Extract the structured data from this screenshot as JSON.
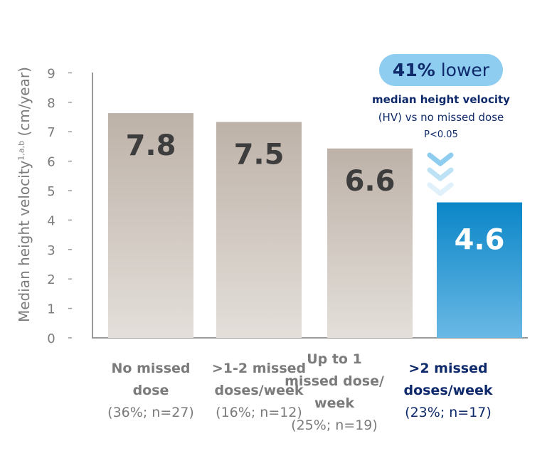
{
  "chart_data": {
    "type": "bar",
    "ylabel": "Median height velocity",
    "ylabel_superscript": "1,a,b",
    "ylabel_unit": "(cm/year)",
    "ylim": [
      0,
      9
    ],
    "yticks": [
      "0",
      "1",
      "2",
      "3",
      "4",
      "5",
      "6",
      "7",
      "8",
      "9"
    ],
    "categories": [
      {
        "title": [
          "No missed",
          "dose"
        ],
        "sub": "(36%; n=27)"
      },
      {
        "title": [
          ">1-2 missed",
          "doses/week"
        ],
        "sub": "(16%; n=12)"
      },
      {
        "title": [
          "Up to 1",
          "missed dose/",
          "week"
        ],
        "sub": "(25%; n=19)"
      },
      {
        "title": [
          ">2 missed",
          "doses/week"
        ],
        "sub": "(23%; n=17)"
      }
    ],
    "values": [
      7.8,
      7.5,
      6.6,
      4.6
    ],
    "value_labels": [
      "7.8",
      "7.5",
      "6.6",
      "4.6"
    ],
    "highlight_index": 3,
    "colors": {
      "bar": "#c4b9b0",
      "highlight": "#0a86c8",
      "highlight_light": "#6ab8e4"
    },
    "annotation": {
      "pill_bold": "41%",
      "pill_rest": " lower",
      "line1": "median height velocity",
      "line2": "(HV) vs no missed dose",
      "pvalue": "P<0.05"
    }
  }
}
